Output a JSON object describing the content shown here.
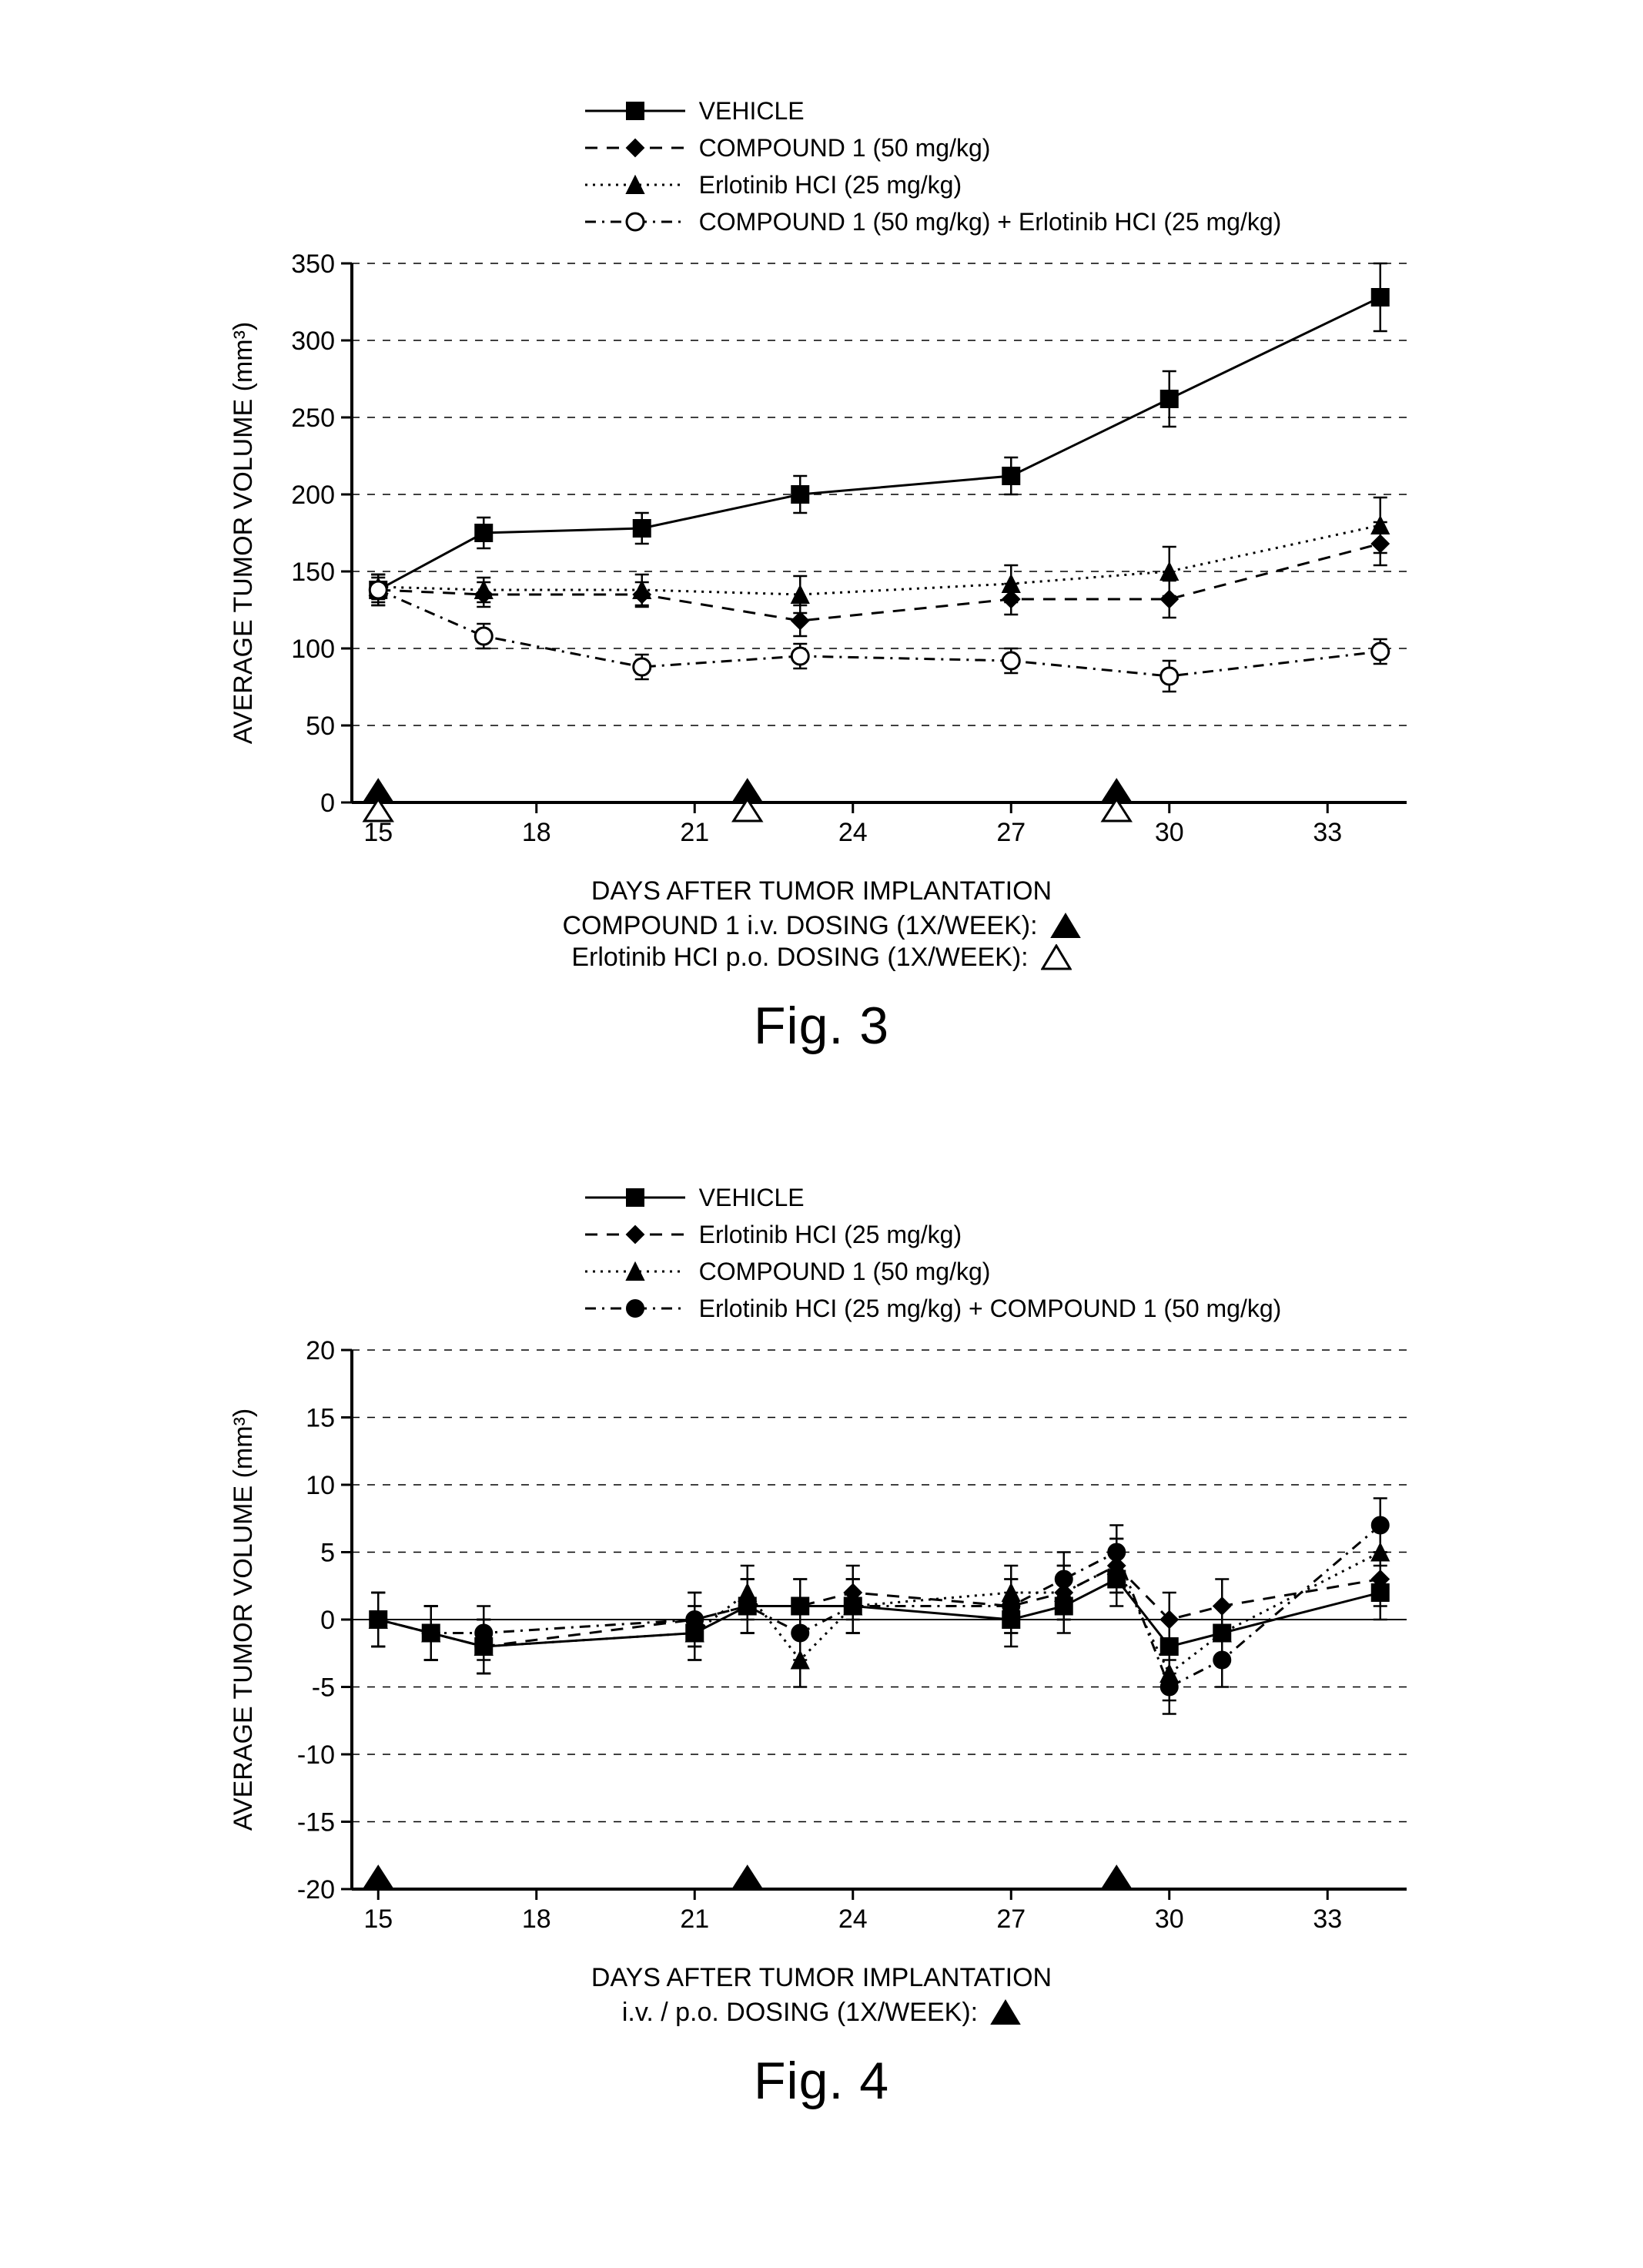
{
  "colors": {
    "bg": "#ffffff",
    "ink": "#000000",
    "grid": "#000000"
  },
  "fonts": {
    "axis_label_size": 34,
    "tick_label_size": 34,
    "legend_size": 32,
    "caption_size": 68,
    "note_size": 34
  },
  "fig3": {
    "caption": "Fig. 3",
    "ylabel": "AVERAGE TUMOR VOLUME (mm³)",
    "xlabel": "DAYS AFTER TUMOR IMPLANTATION",
    "note1": "COMPOUND 1 i.v. DOSING (1X/WEEK):",
    "note2": "Erlotinib HCI p.o. DOSING (1X/WEEK):",
    "xlim": [
      14.5,
      34.5
    ],
    "ylim": [
      0,
      350
    ],
    "xticks": [
      15,
      18,
      21,
      24,
      27,
      30,
      33
    ],
    "yticks": [
      0,
      50,
      100,
      150,
      200,
      250,
      300,
      350
    ],
    "dosing_marks": [
      15,
      22,
      29
    ],
    "legend": [
      {
        "label": "VEHICLE",
        "marker": "square-filled",
        "line": "solid"
      },
      {
        "label": "COMPOUND 1 (50 mg/kg)",
        "marker": "diamond-filled",
        "line": "dash"
      },
      {
        "label": "Erlotinib HCI (25 mg/kg)",
        "marker": "triangle-filled",
        "line": "dot"
      },
      {
        "label": "COMPOUND 1 (50 mg/kg) + Erlotinib HCI (25 mg/kg)",
        "marker": "circle-open",
        "line": "dashdot"
      }
    ],
    "series": {
      "vehicle": {
        "marker": "square-filled",
        "line": "solid",
        "pts": [
          {
            "x": 15,
            "y": 138,
            "e": 10
          },
          {
            "x": 17,
            "y": 175,
            "e": 10
          },
          {
            "x": 20,
            "y": 178,
            "e": 10
          },
          {
            "x": 23,
            "y": 200,
            "e": 12
          },
          {
            "x": 27,
            "y": 212,
            "e": 12
          },
          {
            "x": 30,
            "y": 262,
            "e": 18
          },
          {
            "x": 34,
            "y": 328,
            "e": 22
          }
        ]
      },
      "compound1": {
        "marker": "diamond-filled",
        "line": "dash",
        "pts": [
          {
            "x": 15,
            "y": 138,
            "e": 10
          },
          {
            "x": 17,
            "y": 135,
            "e": 8
          },
          {
            "x": 20,
            "y": 135,
            "e": 8
          },
          {
            "x": 23,
            "y": 118,
            "e": 10
          },
          {
            "x": 27,
            "y": 132,
            "e": 10
          },
          {
            "x": 30,
            "y": 132,
            "e": 12
          },
          {
            "x": 34,
            "y": 168,
            "e": 14
          }
        ]
      },
      "erlotinib": {
        "marker": "triangle-filled",
        "line": "dot",
        "pts": [
          {
            "x": 15,
            "y": 140,
            "e": 8
          },
          {
            "x": 17,
            "y": 138,
            "e": 8
          },
          {
            "x": 20,
            "y": 138,
            "e": 10
          },
          {
            "x": 23,
            "y": 135,
            "e": 12
          },
          {
            "x": 27,
            "y": 142,
            "e": 12
          },
          {
            "x": 30,
            "y": 150,
            "e": 16
          },
          {
            "x": 34,
            "y": 180,
            "e": 18
          }
        ]
      },
      "combo": {
        "marker": "circle-open",
        "line": "dashdot",
        "pts": [
          {
            "x": 15,
            "y": 138,
            "e": 8
          },
          {
            "x": 17,
            "y": 108,
            "e": 8
          },
          {
            "x": 20,
            "y": 88,
            "e": 8
          },
          {
            "x": 23,
            "y": 95,
            "e": 8
          },
          {
            "x": 27,
            "y": 92,
            "e": 8
          },
          {
            "x": 30,
            "y": 82,
            "e": 10
          },
          {
            "x": 34,
            "y": 98,
            "e": 8
          }
        ]
      }
    }
  },
  "fig4": {
    "caption": "Fig. 4",
    "ylabel": "AVERAGE TUMOR VOLUME (mm³)",
    "xlabel": "DAYS AFTER TUMOR IMPLANTATION",
    "note1": "i.v. / p.o. DOSING (1X/WEEK):",
    "xlim": [
      14.5,
      34.5
    ],
    "ylim": [
      -20,
      20
    ],
    "xticks": [
      15,
      18,
      21,
      24,
      27,
      30,
      33
    ],
    "yticks": [
      -20,
      -15,
      -10,
      -5,
      0,
      5,
      10,
      15,
      20
    ],
    "dosing_marks": [
      15,
      22,
      29
    ],
    "legend": [
      {
        "label": "VEHICLE",
        "marker": "square-filled",
        "line": "solid"
      },
      {
        "label": "Erlotinib HCI (25 mg/kg)",
        "marker": "diamond-filled",
        "line": "dash"
      },
      {
        "label": "COMPOUND 1 (50 mg/kg)",
        "marker": "triangle-filled",
        "line": "dot"
      },
      {
        "label": "Erlotinib HCI (25 mg/kg) + COMPOUND 1 (50 mg/kg)",
        "marker": "circle-filled",
        "line": "dashdot"
      }
    ],
    "series": {
      "vehicle": {
        "marker": "square-filled",
        "line": "solid",
        "pts": [
          {
            "x": 15,
            "y": 0,
            "e": 2
          },
          {
            "x": 16,
            "y": -1,
            "e": 2
          },
          {
            "x": 17,
            "y": -2,
            "e": 2
          },
          {
            "x": 21,
            "y": -1,
            "e": 2
          },
          {
            "x": 22,
            "y": 1,
            "e": 2
          },
          {
            "x": 23,
            "y": 1,
            "e": 2
          },
          {
            "x": 24,
            "y": 1,
            "e": 2
          },
          {
            "x": 27,
            "y": 0,
            "e": 2
          },
          {
            "x": 28,
            "y": 1,
            "e": 2
          },
          {
            "x": 29,
            "y": 3,
            "e": 2
          },
          {
            "x": 30,
            "y": -2,
            "e": 2
          },
          {
            "x": 31,
            "y": -1,
            "e": 2
          },
          {
            "x": 34,
            "y": 2,
            "e": 2
          }
        ]
      },
      "erlotinib": {
        "marker": "diamond-filled",
        "line": "dash",
        "pts": [
          {
            "x": 15,
            "y": 0,
            "e": 2
          },
          {
            "x": 16,
            "y": -1,
            "e": 2
          },
          {
            "x": 17,
            "y": -2,
            "e": 2
          },
          {
            "x": 21,
            "y": 0,
            "e": 2
          },
          {
            "x": 22,
            "y": 1,
            "e": 2
          },
          {
            "x": 23,
            "y": 1,
            "e": 2
          },
          {
            "x": 24,
            "y": 2,
            "e": 2
          },
          {
            "x": 27,
            "y": 1,
            "e": 2
          },
          {
            "x": 28,
            "y": 2,
            "e": 2
          },
          {
            "x": 29,
            "y": 4,
            "e": 2
          },
          {
            "x": 30,
            "y": 0,
            "e": 2
          },
          {
            "x": 31,
            "y": 1,
            "e": 2
          },
          {
            "x": 34,
            "y": 3,
            "e": 2
          }
        ]
      },
      "compound1": {
        "marker": "triangle-filled",
        "line": "dot",
        "pts": [
          {
            "x": 15,
            "y": 0,
            "e": 2
          },
          {
            "x": 16,
            "y": -1,
            "e": 2
          },
          {
            "x": 17,
            "y": -2,
            "e": 2
          },
          {
            "x": 21,
            "y": -1,
            "e": 2
          },
          {
            "x": 22,
            "y": 2,
            "e": 2
          },
          {
            "x": 23,
            "y": -3,
            "e": 2
          },
          {
            "x": 24,
            "y": 1,
            "e": 2
          },
          {
            "x": 27,
            "y": 2,
            "e": 2
          },
          {
            "x": 28,
            "y": 2,
            "e": 2
          },
          {
            "x": 29,
            "y": 4,
            "e": 2
          },
          {
            "x": 30,
            "y": -4,
            "e": 2
          },
          {
            "x": 31,
            "y": -1,
            "e": 2
          },
          {
            "x": 34,
            "y": 5,
            "e": 2
          }
        ]
      },
      "combo": {
        "marker": "circle-filled",
        "line": "dashdot",
        "pts": [
          {
            "x": 15,
            "y": 0,
            "e": 2
          },
          {
            "x": 16,
            "y": -1,
            "e": 2
          },
          {
            "x": 17,
            "y": -1,
            "e": 2
          },
          {
            "x": 21,
            "y": 0,
            "e": 2
          },
          {
            "x": 22,
            "y": 1,
            "e": 2
          },
          {
            "x": 23,
            "y": -1,
            "e": 2
          },
          {
            "x": 24,
            "y": 1,
            "e": 2
          },
          {
            "x": 27,
            "y": 1,
            "e": 2
          },
          {
            "x": 28,
            "y": 3,
            "e": 2
          },
          {
            "x": 29,
            "y": 5,
            "e": 2
          },
          {
            "x": 30,
            "y": -5,
            "e": 2
          },
          {
            "x": 31,
            "y": -3,
            "e": 2
          },
          {
            "x": 34,
            "y": 7,
            "e": 2
          }
        ]
      }
    }
  }
}
